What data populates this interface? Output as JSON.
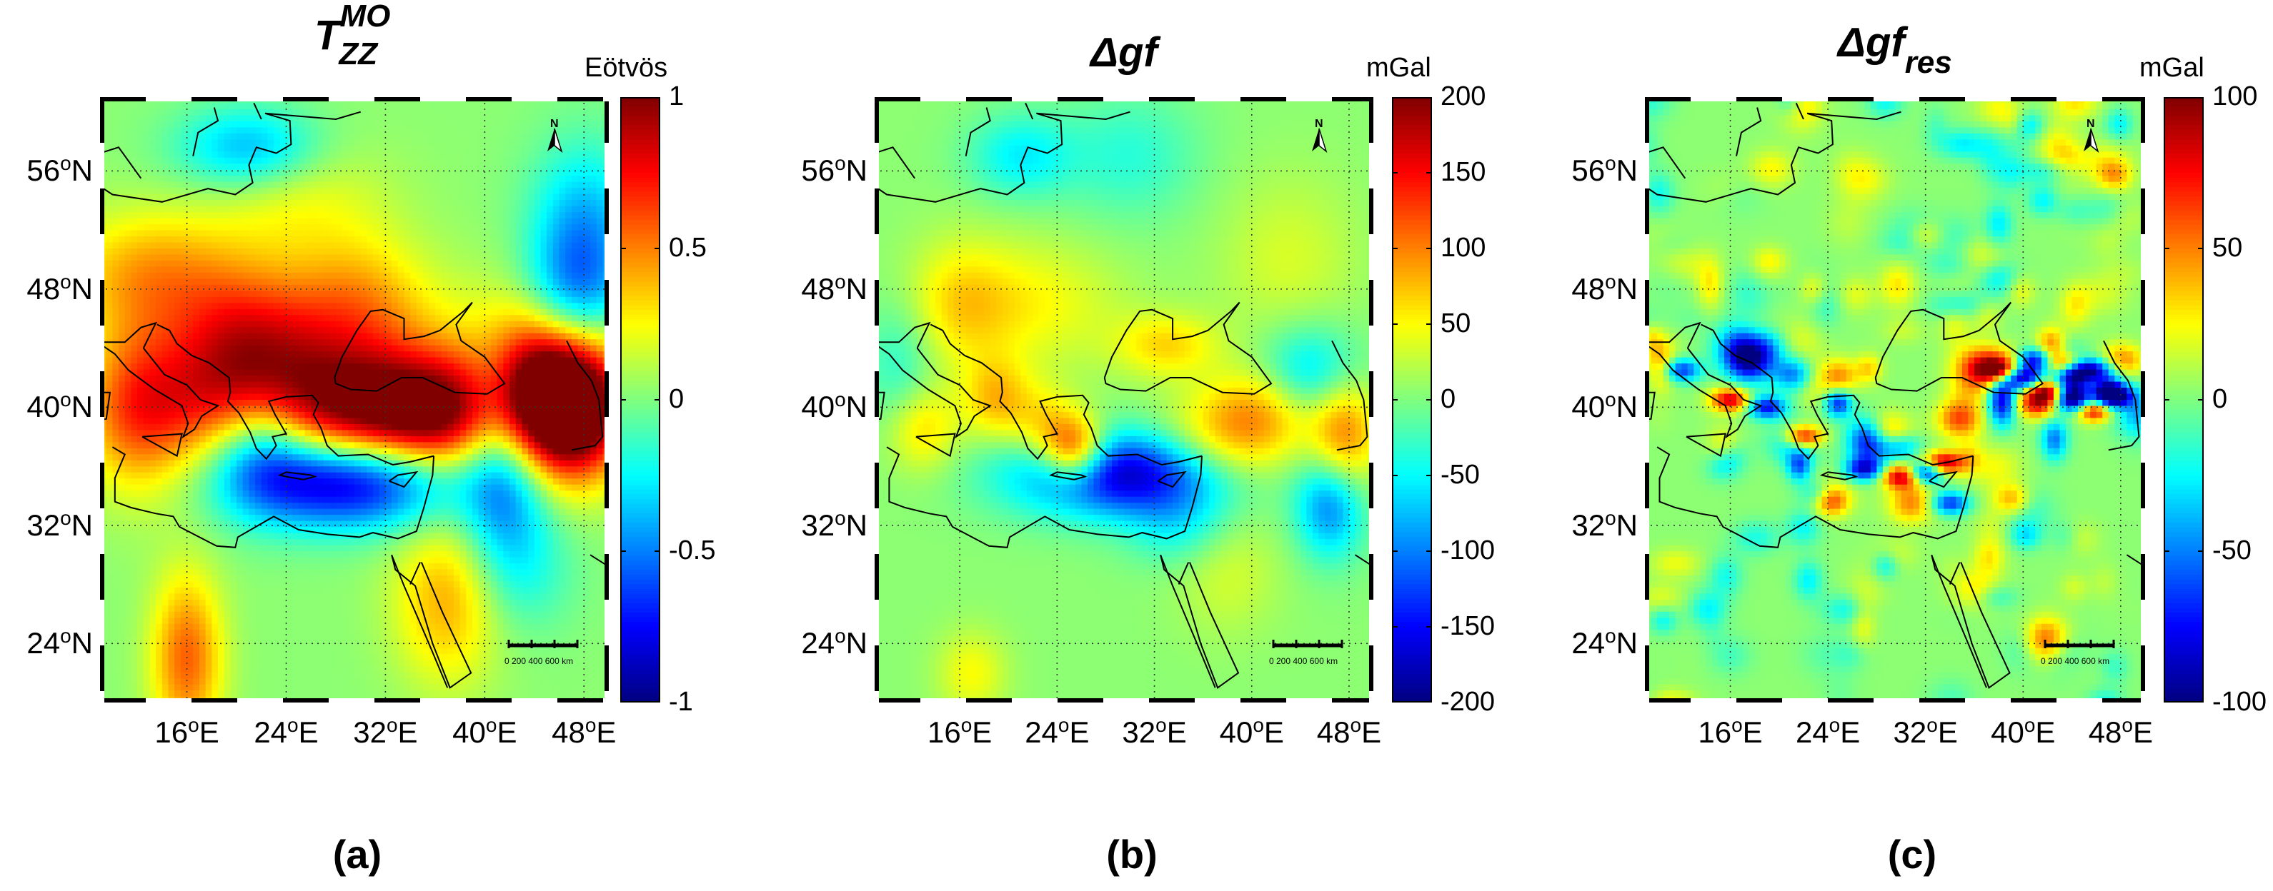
{
  "panels": [
    {
      "id": "a",
      "title_main": "T",
      "title_sup": "MO",
      "title_sub": "ZZ",
      "units": "Eötvös",
      "colorbar_ticks": [
        "1",
        "0.5",
        "0",
        "-0.5",
        "-1"
      ],
      "colorbar_range": [
        -1,
        1
      ],
      "label": "(a)",
      "field": "tzz"
    },
    {
      "id": "b",
      "title_main": "Δgf",
      "title_sup": "",
      "title_sub": "",
      "units": "mGal",
      "colorbar_ticks": [
        "200",
        "150",
        "100",
        "50",
        "0",
        "-50",
        "-100",
        "-150",
        "-200"
      ],
      "colorbar_range": [
        -200,
        200
      ],
      "label": "(b)",
      "field": "dgf"
    },
    {
      "id": "c",
      "title_main": "Δgf",
      "title_sup": "",
      "title_sub": "res",
      "units": "mGal",
      "colorbar_ticks": [
        "100",
        "50",
        "0",
        "-50",
        "-100"
      ],
      "colorbar_range": [
        -100,
        100
      ],
      "label": "(c)",
      "field": "dgfres"
    }
  ],
  "lat_labels": [
    {
      "deg": "56",
      "hemi": "N"
    },
    {
      "deg": "48",
      "hemi": "N"
    },
    {
      "deg": "40",
      "hemi": "N"
    },
    {
      "deg": "32",
      "hemi": "N"
    },
    {
      "deg": "24",
      "hemi": "N"
    }
  ],
  "lon_labels": [
    {
      "deg": "16",
      "hemi": "E"
    },
    {
      "deg": "24",
      "hemi": "E"
    },
    {
      "deg": "32",
      "hemi": "E"
    },
    {
      "deg": "40",
      "hemi": "E"
    },
    {
      "deg": "48",
      "hemi": "E"
    }
  ],
  "scale_bar_text": "0  200 400 600  km",
  "north_arrow_label": "N",
  "colormap": "jet",
  "grid": true
}
